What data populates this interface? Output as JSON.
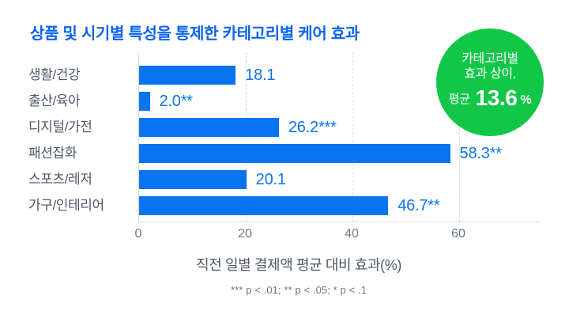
{
  "title": "상품 및 시기별 특성을 통제한 카테고리별 케어 효과",
  "badge": {
    "line1": "카테고리별",
    "line2": "효과 상이,",
    "prefix": "평균",
    "value": "13.6",
    "unit": "%",
    "bg_color": "#12c747",
    "text_color": "#ffffff"
  },
  "chart_data": {
    "type": "bar",
    "orientation": "horizontal",
    "title": "상품 및 시기별 특성을 통제한 카테고리별 케어 효과",
    "categories": [
      "생활/건강",
      "출산/육아",
      "디지털/가전",
      "패션잡화",
      "스포츠/레저",
      "가구/인테리어"
    ],
    "values": [
      18.1,
      2.0,
      26.2,
      58.3,
      20.1,
      46.7
    ],
    "value_labels": [
      "18.1",
      "2.0**",
      "26.2***",
      "58.3**",
      "20.1",
      "46.7**"
    ],
    "xlabel": "직전 일별 결제액 평균 대비 효과(%)",
    "x_ticks": [
      0,
      20,
      40,
      60
    ],
    "xlim": [
      0,
      75
    ],
    "grid": "vertical-dashed-at-ticks",
    "legend": "none",
    "footnote": "*** p < .01; ** p < .05; * p < .1"
  },
  "colors": {
    "title_blue": "#0b63f2",
    "bar_blue": "#0a74f0",
    "value_blue": "#0a74f0",
    "axis_gray": "#d5dbe0",
    "category_gray": "#4e5968",
    "tick_gray": "#6b7684"
  }
}
